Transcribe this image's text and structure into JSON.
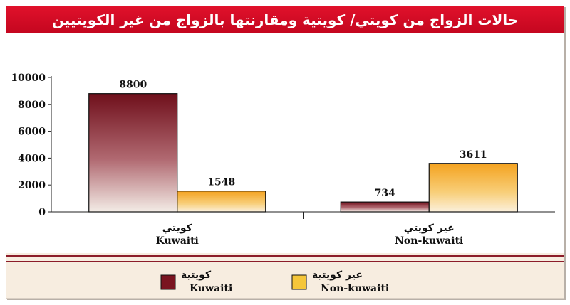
{
  "chart_data": {
    "type": "bar",
    "title": "حالات الزواج من كويتي/ كويتية ومقارنتها بالزواج من غير الكويتيين",
    "categories": [
      {
        "ar": "كويتي",
        "en": "Kuwaiti"
      },
      {
        "ar": "غير كويتي",
        "en": "Non-kuwaiti"
      }
    ],
    "series": [
      {
        "name_ar": "كويتية",
        "name_en": "Kuwaiti",
        "color": "#7a1420",
        "values": [
          8800,
          734
        ]
      },
      {
        "name_ar": "غير كويتية",
        "name_en": "Non-kuwaiti",
        "color": "#f5c63a",
        "values": [
          1548,
          3611
        ]
      }
    ],
    "y_ticks": [
      0,
      2000,
      4000,
      6000,
      8000,
      10000
    ],
    "ylim": [
      0,
      10000
    ],
    "grid": false,
    "legend_position": "bottom"
  },
  "colors": {
    "title_bar": "#d40a24",
    "panel_bg": "#f7ede0",
    "divider": "#8c1d2a"
  }
}
